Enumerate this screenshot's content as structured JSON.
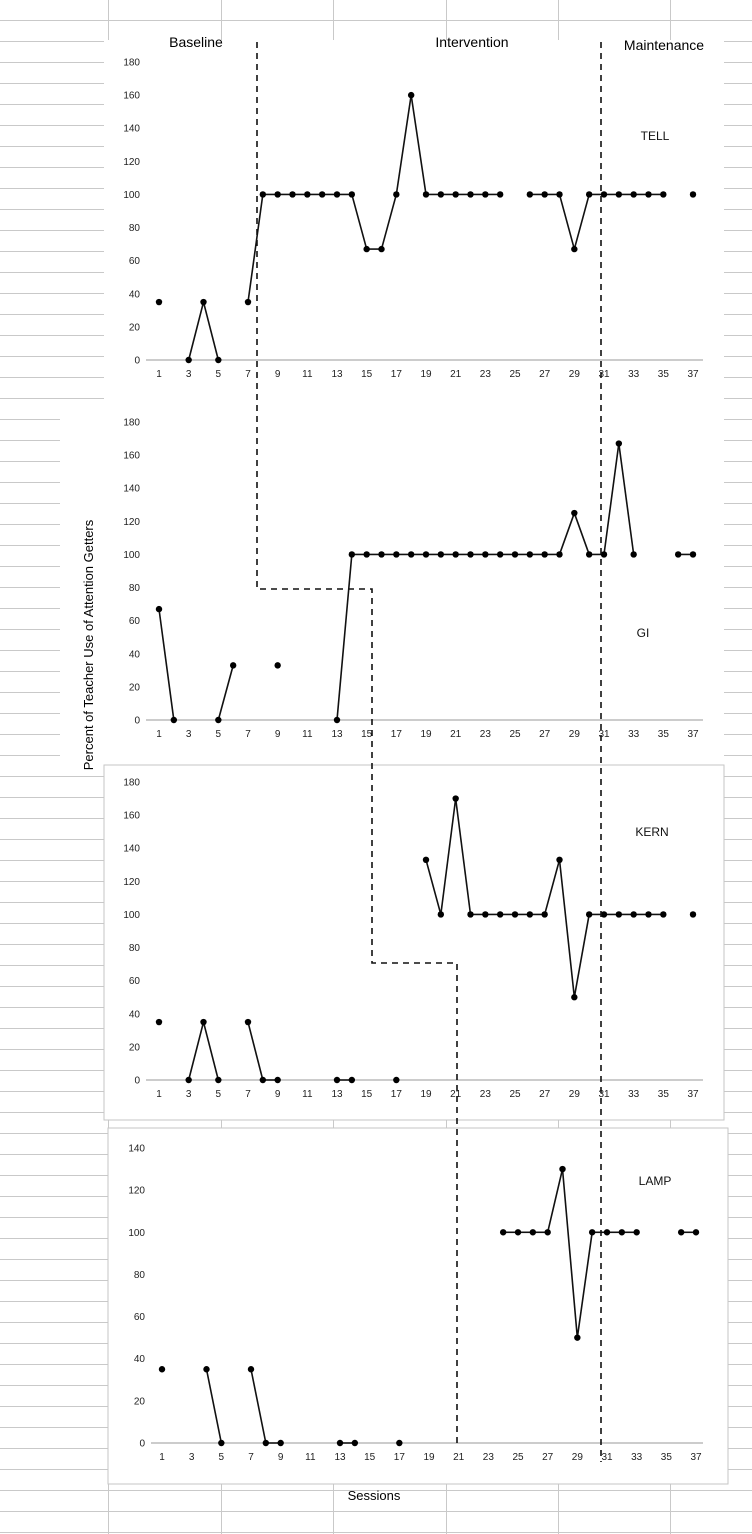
{
  "phase_labels": [
    "Baseline",
    "Intervention",
    "Maintenance"
  ],
  "ylabel": "Percent of Teacher Use of Attention Getters",
  "xlabel": "Sessions",
  "chart_data": [
    {
      "type": "line",
      "title": "TELL",
      "ylim": [
        0,
        180
      ],
      "yticks": [
        0,
        20,
        40,
        60,
        80,
        100,
        120,
        140,
        160,
        180
      ],
      "xticks": [
        1,
        3,
        5,
        7,
        9,
        11,
        13,
        15,
        17,
        19,
        21,
        23,
        25,
        27,
        29,
        31,
        33,
        35,
        37
      ],
      "series": [
        {
          "x": [
            1,
            3,
            4,
            5,
            7,
            8,
            9,
            10,
            11,
            12,
            13,
            14,
            15,
            16,
            17,
            18,
            19,
            20,
            21,
            22,
            23,
            24,
            26,
            27,
            28,
            29,
            30,
            31,
            32,
            33,
            34,
            35,
            37
          ],
          "y": [
            35,
            0,
            35,
            0,
            35,
            100,
            100,
            100,
            100,
            100,
            100,
            100,
            67,
            67,
            100,
            160,
            100,
            100,
            100,
            100,
            100,
            100,
            100,
            100,
            100,
            67,
            100,
            100,
            100,
            100,
            100,
            100,
            100
          ]
        }
      ]
    },
    {
      "type": "line",
      "title": "GI",
      "ylim": [
        0,
        180
      ],
      "yticks": [
        0,
        20,
        40,
        60,
        80,
        100,
        120,
        140,
        160,
        180
      ],
      "xticks": [
        1,
        3,
        5,
        7,
        9,
        11,
        13,
        15,
        17,
        19,
        21,
        23,
        25,
        27,
        29,
        31,
        33,
        35,
        37
      ],
      "series": [
        {
          "x": [
            1,
            2,
            5,
            6,
            9,
            13,
            14,
            15,
            16,
            17,
            18,
            19,
            20,
            21,
            22,
            23,
            24,
            25,
            26,
            27,
            28,
            29,
            30,
            31,
            32,
            33,
            36,
            37
          ],
          "y": [
            67,
            0,
            0,
            33,
            33,
            0,
            100,
            100,
            100,
            100,
            100,
            100,
            100,
            100,
            100,
            100,
            100,
            100,
            100,
            100,
            100,
            125,
            100,
            100,
            167,
            100,
            100,
            100
          ]
        }
      ]
    },
    {
      "type": "line",
      "title": "KERN",
      "ylim": [
        0,
        180
      ],
      "yticks": [
        0,
        20,
        40,
        60,
        80,
        100,
        120,
        140,
        160,
        180
      ],
      "xticks": [
        1,
        3,
        5,
        7,
        9,
        11,
        13,
        15,
        17,
        19,
        21,
        23,
        25,
        27,
        29,
        31,
        33,
        35,
        37
      ],
      "series": [
        {
          "x": [
            1,
            3,
            4,
            5,
            7,
            8,
            9,
            13,
            14,
            17,
            19,
            20,
            21,
            22,
            23,
            24,
            25,
            26,
            27,
            28,
            29,
            30,
            31,
            32,
            33,
            34,
            35,
            37
          ],
          "y": [
            35,
            0,
            35,
            0,
            35,
            0,
            0,
            0,
            0,
            0,
            133,
            100,
            170,
            100,
            100,
            100,
            100,
            100,
            100,
            133,
            50,
            100,
            100,
            100,
            100,
            100,
            100,
            100
          ]
        }
      ]
    },
    {
      "type": "line",
      "title": "LAMP",
      "ylim": [
        0,
        140
      ],
      "yticks": [
        0,
        20,
        40,
        60,
        80,
        100,
        120,
        140
      ],
      "xticks": [
        1,
        3,
        5,
        7,
        9,
        11,
        13,
        15,
        17,
        19,
        21,
        23,
        25,
        27,
        29,
        31,
        33,
        35,
        37
      ],
      "series": [
        {
          "x": [
            1,
            4,
            5,
            7,
            8,
            9,
            13,
            14,
            17,
            24,
            25,
            26,
            27,
            28,
            29,
            30,
            31,
            32,
            33,
            36,
            37
          ],
          "y": [
            35,
            35,
            0,
            35,
            0,
            0,
            0,
            0,
            0,
            100,
            100,
            100,
            100,
            130,
            50,
            100,
            100,
            100,
            100,
            100,
            100
          ]
        }
      ]
    }
  ]
}
